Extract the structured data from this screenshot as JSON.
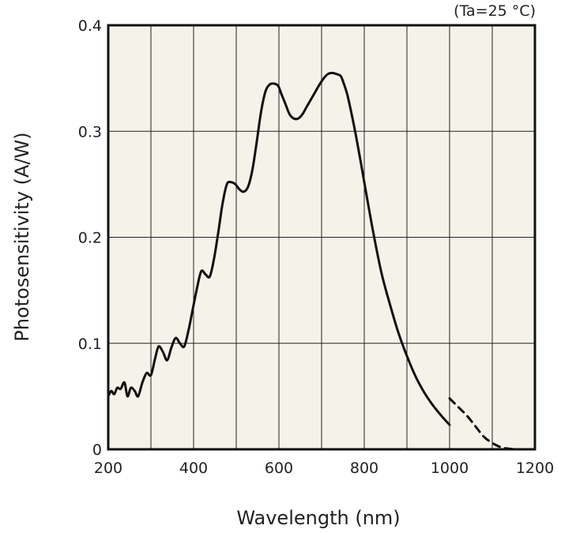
{
  "chart_data": {
    "type": "line",
    "title": "",
    "annotation": "(Ta=25 °C)",
    "xlabel": "Wavelength (nm)",
    "ylabel": "Photosensitivity (A/W)",
    "xlim": [
      200,
      1200
    ],
    "ylim": [
      0,
      0.4
    ],
    "xticks": [
      200,
      400,
      600,
      800,
      1000,
      1200
    ],
    "xtick_labels": [
      "200",
      "400",
      "600",
      "800",
      "1000",
      "1200"
    ],
    "yticks": [
      0,
      0.1,
      0.2,
      0.3,
      0.4
    ],
    "ytick_labels": [
      "0",
      "0.1",
      "0.2",
      "0.3",
      "0.4"
    ],
    "grid": true,
    "grid_x_step": 100,
    "grid_y_step": 0.1,
    "colors": {
      "background": "#f5f2e9",
      "line": "#111111",
      "grid": "#222222"
    },
    "series": [
      {
        "style": "solid",
        "x": [
          200,
          207,
          214,
          221,
          229,
          238,
          245,
          253,
          262,
          270,
          280,
          290,
          300,
          310,
          318,
          328,
          338,
          348,
          358,
          368,
          378,
          388,
          398,
          408,
          418,
          428,
          438,
          448,
          458,
          468,
          478,
          488,
          498,
          508,
          518,
          528,
          538,
          548,
          558,
          568,
          578,
          588,
          598,
          605,
          615,
          625,
          635,
          645,
          655,
          665,
          675,
          685,
          695,
          705,
          715,
          725,
          735,
          745,
          752,
          760,
          770,
          780,
          790,
          800,
          820,
          840,
          860,
          880,
          900,
          920,
          940,
          960,
          980,
          1000
        ],
        "y": [
          0.05,
          0.055,
          0.052,
          0.058,
          0.057,
          0.063,
          0.05,
          0.058,
          0.055,
          0.05,
          0.063,
          0.072,
          0.07,
          0.086,
          0.097,
          0.092,
          0.084,
          0.096,
          0.105,
          0.1,
          0.097,
          0.112,
          0.132,
          0.152,
          0.168,
          0.165,
          0.163,
          0.18,
          0.205,
          0.232,
          0.25,
          0.252,
          0.25,
          0.245,
          0.243,
          0.248,
          0.264,
          0.29,
          0.318,
          0.337,
          0.344,
          0.345,
          0.343,
          0.336,
          0.326,
          0.316,
          0.312,
          0.312,
          0.316,
          0.323,
          0.33,
          0.337,
          0.344,
          0.35,
          0.354,
          0.355,
          0.354,
          0.352,
          0.345,
          0.335,
          0.317,
          0.297,
          0.275,
          0.252,
          0.207,
          0.167,
          0.137,
          0.11,
          0.088,
          0.069,
          0.054,
          0.042,
          0.032,
          0.023
        ]
      },
      {
        "style": "dashed",
        "x": [
          1000,
          1020,
          1040,
          1060,
          1080,
          1100,
          1120,
          1140,
          1160,
          1180
        ],
        "y": [
          0.048,
          0.04,
          0.032,
          0.022,
          0.012,
          0.006,
          0.002,
          0.0005,
          0.0,
          0.0
        ]
      }
    ]
  }
}
